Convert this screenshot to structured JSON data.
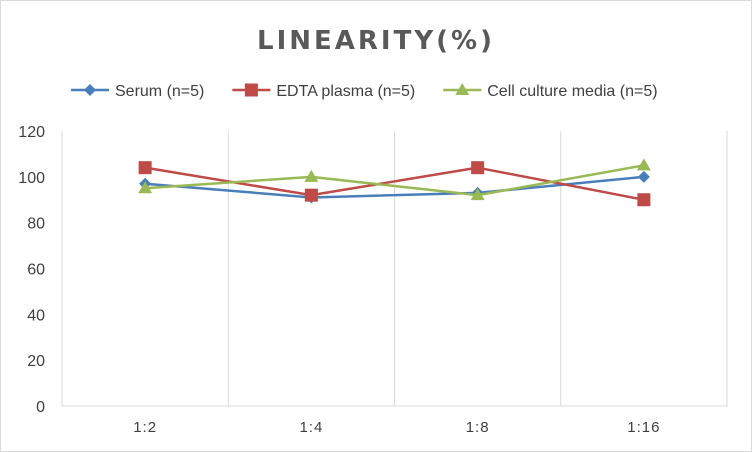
{
  "chart_data": {
    "type": "line",
    "title": "LINEARITY(%)",
    "categories": [
      "1:2",
      "1:4",
      "1:8",
      "1:16"
    ],
    "series": [
      {
        "name": "Serum (n=5)",
        "values": [
          97,
          91,
          93,
          100
        ],
        "color": "#4a7ebb",
        "marker": "diamond"
      },
      {
        "name": "EDTA plasma (n=5)",
        "values": [
          104,
          92,
          104,
          90
        ],
        "color": "#be4b48",
        "marker": "square"
      },
      {
        "name": "Cell culture media (n=5)",
        "values": [
          95,
          100,
          92,
          105
        ],
        "color": "#98b954",
        "marker": "triangle"
      }
    ],
    "ylim": [
      0,
      120
    ],
    "yticks": [
      "0",
      "20",
      "40",
      "60",
      "80",
      "100",
      "120"
    ],
    "grid": "vertical category lines",
    "legend_position": "top"
  }
}
